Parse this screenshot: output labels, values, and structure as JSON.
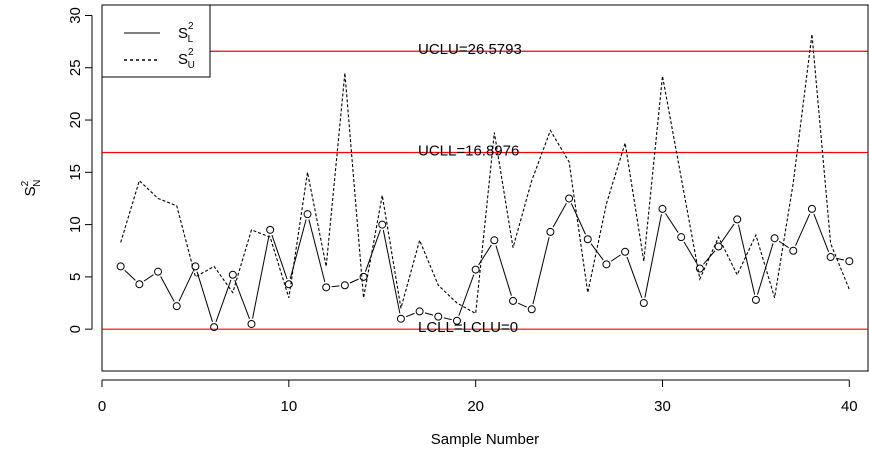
{
  "chart_data": {
    "type": "line",
    "title": "",
    "xlabel": "Sample Number",
    "ylabel": "S",
    "ylabel_sup": "2",
    "ylabel_sub": "N",
    "xlim": [
      0,
      41
    ],
    "ylim": [
      -4,
      31
    ],
    "xticks": [
      0,
      10,
      20,
      30,
      40
    ],
    "yticks": [
      0,
      5,
      10,
      15,
      20,
      25,
      30
    ],
    "x": [
      1,
      2,
      3,
      4,
      5,
      6,
      7,
      8,
      9,
      10,
      11,
      12,
      13,
      14,
      15,
      16,
      17,
      18,
      19,
      20,
      21,
      22,
      23,
      24,
      25,
      26,
      27,
      28,
      29,
      30,
      31,
      32,
      33,
      34,
      35,
      36,
      37,
      38,
      39,
      40
    ],
    "series": [
      {
        "name": "S",
        "name_sup": "2",
        "name_sub": "L",
        "line_style": "solid",
        "markers": "circle",
        "values": [
          6.0,
          4.3,
          5.5,
          2.2,
          6.0,
          0.2,
          5.2,
          0.5,
          9.5,
          4.3,
          11.0,
          4.0,
          4.2,
          5.0,
          10.0,
          1.0,
          1.7,
          1.2,
          0.8,
          5.7,
          8.5,
          2.7,
          1.9,
          9.3,
          12.5,
          8.6,
          6.2,
          7.4,
          2.5,
          11.5,
          8.8,
          5.8,
          7.9,
          10.5,
          2.8,
          8.7,
          7.5,
          11.5,
          6.9,
          6.5
        ]
      },
      {
        "name": "S",
        "name_sup": "2",
        "name_sub": "U",
        "line_style": "dashed",
        "markers": "none",
        "values": [
          8.3,
          14.2,
          12.5,
          11.8,
          5.0,
          6.0,
          3.5,
          9.5,
          8.8,
          3.0,
          15.0,
          6.0,
          24.5,
          3.0,
          12.8,
          2.0,
          8.5,
          4.2,
          2.5,
          1.5,
          18.8,
          7.8,
          14.2,
          19.0,
          16.0,
          3.5,
          12.0,
          17.8,
          6.5,
          24.2,
          14.5,
          4.8,
          8.8,
          5.2,
          9.0,
          3.0,
          14.0,
          28.2,
          8.2,
          3.8
        ]
      }
    ],
    "reference_lines": [
      {
        "value": 26.5793,
        "label": "UCLU=26.5793",
        "color": "#ff0000"
      },
      {
        "value": 16.8976,
        "label": "UCLL=16.8976",
        "color": "#ff0000"
      },
      {
        "value": 0,
        "label": "LCLL=LCLU=0",
        "color": "#ff0000"
      }
    ],
    "legend_position": "top-left",
    "grid": false
  }
}
